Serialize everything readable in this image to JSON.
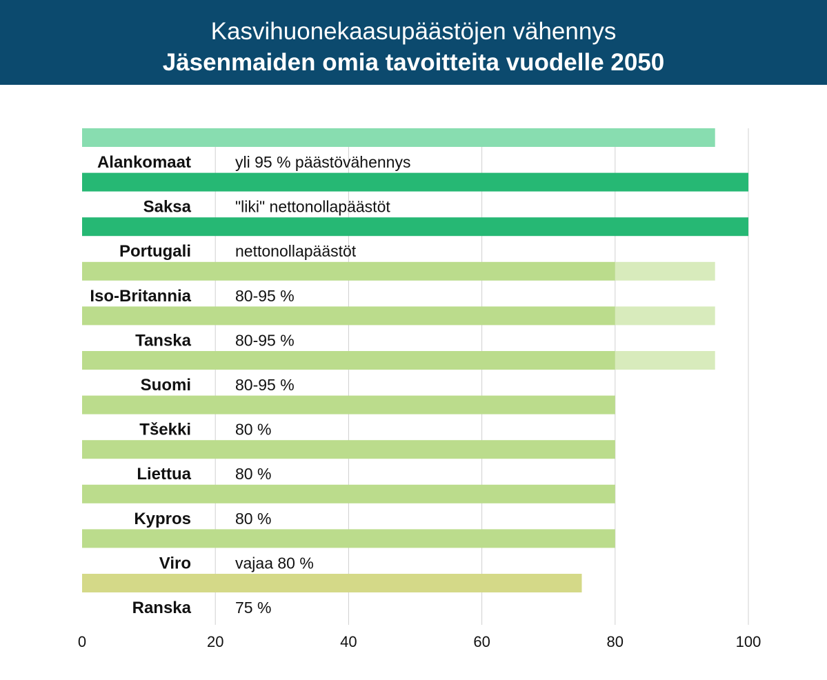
{
  "header": {
    "title": "Kasvihuonekaasupäästöjen vähennys",
    "subtitle": "Jäsenmaiden omia tavoitteita vuodelle 2050"
  },
  "chart_data": {
    "type": "bar",
    "orientation": "horizontal",
    "stacked": true,
    "title": "Kasvihuonekaasupäästöjen vähennys",
    "subtitle": "Jäsenmaiden omia tavoitteita vuodelle 2050",
    "xlabel": "",
    "ylabel": "",
    "xlim": [
      0,
      100
    ],
    "ticks": [
      0,
      20,
      40,
      60,
      80,
      100
    ],
    "grid": true,
    "categories": [
      "Alankomaat",
      "Saksa",
      "Portugali",
      "Iso-Britannia",
      "Tanska",
      "Suomi",
      "Tšekki",
      "Liettua",
      "Kypros",
      "Viro",
      "Ranska"
    ],
    "descriptions": [
      "yli 95 % päästövähennys",
      "\"liki\" nettonollapäästöt",
      "nettonollapäästöt",
      "80-95 %",
      "80-95 %",
      "80-95 %",
      "80 %",
      "80 %",
      "80 %",
      "vajaa 80 %",
      "75 %"
    ],
    "values": [
      95,
      100,
      100,
      80,
      80,
      80,
      80,
      80,
      80,
      80,
      75
    ],
    "range_extension": [
      0,
      0,
      0,
      15,
      15,
      15,
      0,
      0,
      0,
      0,
      0
    ],
    "colors": [
      "#88ddb0",
      "#26b874",
      "#26b874",
      "#bbdc8c",
      "#bbdc8c",
      "#bbdc8c",
      "#bbdc8c",
      "#bbdc8c",
      "#bbdc8c",
      "#bbdc8c",
      "#d4d988"
    ],
    "range_color": "#d8ebbc",
    "grid_color": "#d0d0d0"
  }
}
